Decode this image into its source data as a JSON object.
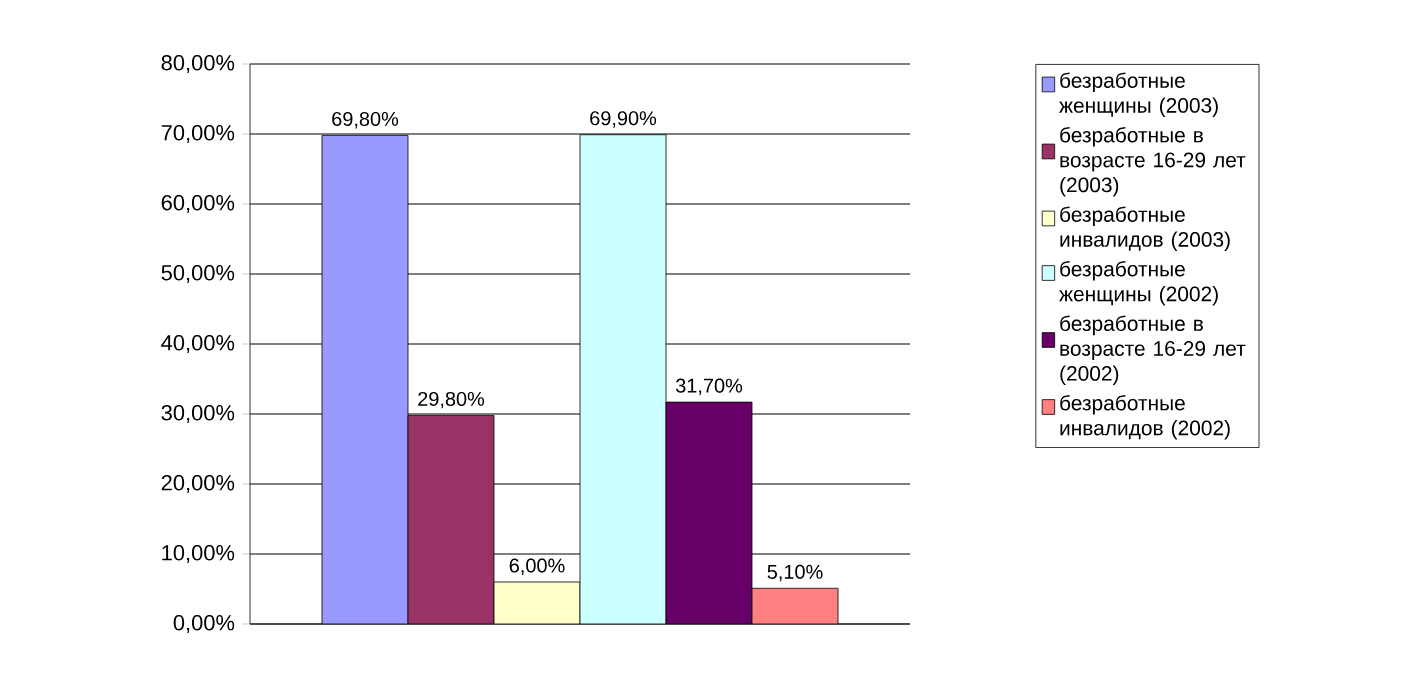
{
  "chart_data": {
    "type": "bar",
    "categories": [
      null
    ],
    "series": [
      {
        "name": "безработные женщины (2003)",
        "color": "#9999ff",
        "values": [
          69.8
        ],
        "value_labels": [
          "69,80%"
        ]
      },
      {
        "name": "безработные в возрасте 16-29 лет (2003)",
        "color": "#993366",
        "values": [
          29.8
        ],
        "value_labels": [
          "29,80%"
        ]
      },
      {
        "name": "безработные инвалидов (2003)",
        "color": "#ffffcc",
        "values": [
          6.0
        ],
        "value_labels": [
          "6,00%"
        ]
      },
      {
        "name": "безработные женщины (2002)",
        "color": "#ccffff",
        "values": [
          69.9
        ],
        "value_labels": [
          "69,90%"
        ]
      },
      {
        "name": "безработные в возрасте 16-29 лет (2002)",
        "color": "#660066",
        "values": [
          31.7
        ],
        "value_labels": [
          "31,70%"
        ]
      },
      {
        "name": "безработные инвалидов (2002)",
        "color": "#ff8080",
        "values": [
          5.1
        ],
        "value_labels": [
          "5,10%"
        ]
      }
    ],
    "ylim": [
      0,
      80
    ],
    "yticks": [
      {
        "value": 0,
        "label": "0,00%"
      },
      {
        "value": 10,
        "label": "10,00%"
      },
      {
        "value": 20,
        "label": "20,00%"
      },
      {
        "value": 30,
        "label": "30,00%"
      },
      {
        "value": 40,
        "label": "40,00%"
      },
      {
        "value": 50,
        "label": "50,00%"
      },
      {
        "value": 60,
        "label": "60,00%"
      },
      {
        "value": 70,
        "label": "70,00%"
      },
      {
        "value": 80,
        "label": "80,00%"
      }
    ],
    "grid": "y",
    "legend": "right"
  }
}
